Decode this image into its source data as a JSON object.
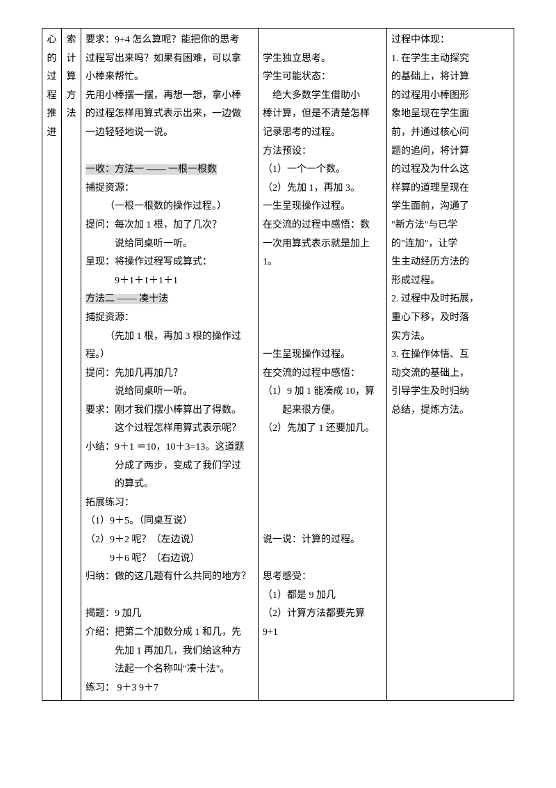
{
  "col1": {
    "c1": "心",
    "c2": "的",
    "c3": "过",
    "c4": "程",
    "c5": "推",
    "c6": "进"
  },
  "col2": {
    "c1": "索",
    "c2": "计",
    "c3": "算",
    "c4": "方",
    "c5": "法"
  },
  "teach": {
    "t1": "要求：9+4 怎么算呢？能把你的思考",
    "t2": "过程写出来吗？如果有困难，可以拿",
    "t3": "小棒来帮忙。",
    "t4": "先用小棒摆一摆，再想一想，拿小棒",
    "t5": "的过程怎样用算式表示出来，一边做",
    "t6": "一边轻轻地说一说。",
    "t7": "一收：方法一 —— 一根一根数",
    "t8": "捕捉资源：",
    "t9": "（一根一根数的操作过程。）",
    "t10": "提问：每次加 1 根，加了几次？",
    "t11": "说给同桌听一听。",
    "t12": "呈现：将操作过程写成算式：",
    "t13": "9＋1＋1＋1＋1",
    "t14": "方法二 —— 凑十法",
    "t15": "捕捉资源：",
    "t16": "（先加 1 根，再加 3 根的操作过",
    "t16b": "程。）",
    "t17": "提问：先加几再加几？",
    "t18": "说给同桌听一听。",
    "t19": "要求：刚才我们摆小棒算出了得数。",
    "t20": "这个过程怎样用算式表示呢？",
    "t21": "小结：9＋1 ＝10，10＋3=13。这道题",
    "t22": "分成了两步，变成了我们学过",
    "t23": "的算式。",
    "t24": "拓展练习：",
    "t25": "（1）9＋5。（同桌互说）",
    "t26": "（2）9＋2 呢？（左边说）",
    "t27": "9＋6 呢？（右边说）",
    "t28": "归纳：做的这几题有什么共同的地方？",
    "t29": "揭题：9 加几",
    "t30": "介绍：把第二个加数分成 1 和几，先",
    "t31": "先加 1 再加几，我们给这种方",
    "t32": "法起一个名称叫\"凑十法\"。",
    "t33": "练习： 9＋3  9＋7"
  },
  "student": {
    "s1": "学生独立思考。",
    "s2": "学生可能状态：",
    "s3": "绝大多数学生借助小",
    "s4": "棒计算，但是不清楚怎样",
    "s5": "记录思考的过程。",
    "s6": "方法预设：",
    "s7": "（1）一个一个数。",
    "s8": "（2）先加 1，再加 3。",
    "s9": "一生呈现操作过程。",
    "s10": "在交流的过程中感悟：数",
    "s11": "一次用算式表示就是加上",
    "s12": "1。",
    "s13": "一生呈现操作过程。",
    "s14": "在交流的过程中感悟：",
    "s15": "（1）9 加 1 能凑成 10，算",
    "s16": "起来很方便。",
    "s17": "（2）先加了 1 还要加几。",
    "s18": "说一说：计算的过程。",
    "s19": "思考感受：",
    "s20": "（1）都是 9 加几",
    "s21": "（2）计算方法都要先算",
    "s22": "9+1"
  },
  "intent": {
    "i1": "过程中体现：",
    "i2": "1. 在学生主动探究",
    "i3": "的基础上，将计算",
    "i4": "的过程用小棒图形",
    "i5": "象地呈现在学生面",
    "i6": "前，并通过核心问",
    "i7": "题的追问，将计算",
    "i8": "的过程及为什么这",
    "i9": "样算的道理呈现在",
    "i10": "学生面前，沟通了",
    "i11": "\"新方法\"与已学",
    "i12": "的\"连加\"，让学",
    "i13": "生主动经历方法的",
    "i14": "形成过程。",
    "i15": "2. 过程中及时拓展，",
    "i16": "重心下移，及时落",
    "i17": "实方法。",
    "i18": "3. 在操作体悟、互",
    "i19": "动交流的基础上，",
    "i20": "引导学生及时归纳",
    "i21": "总结，提炼方法。"
  }
}
